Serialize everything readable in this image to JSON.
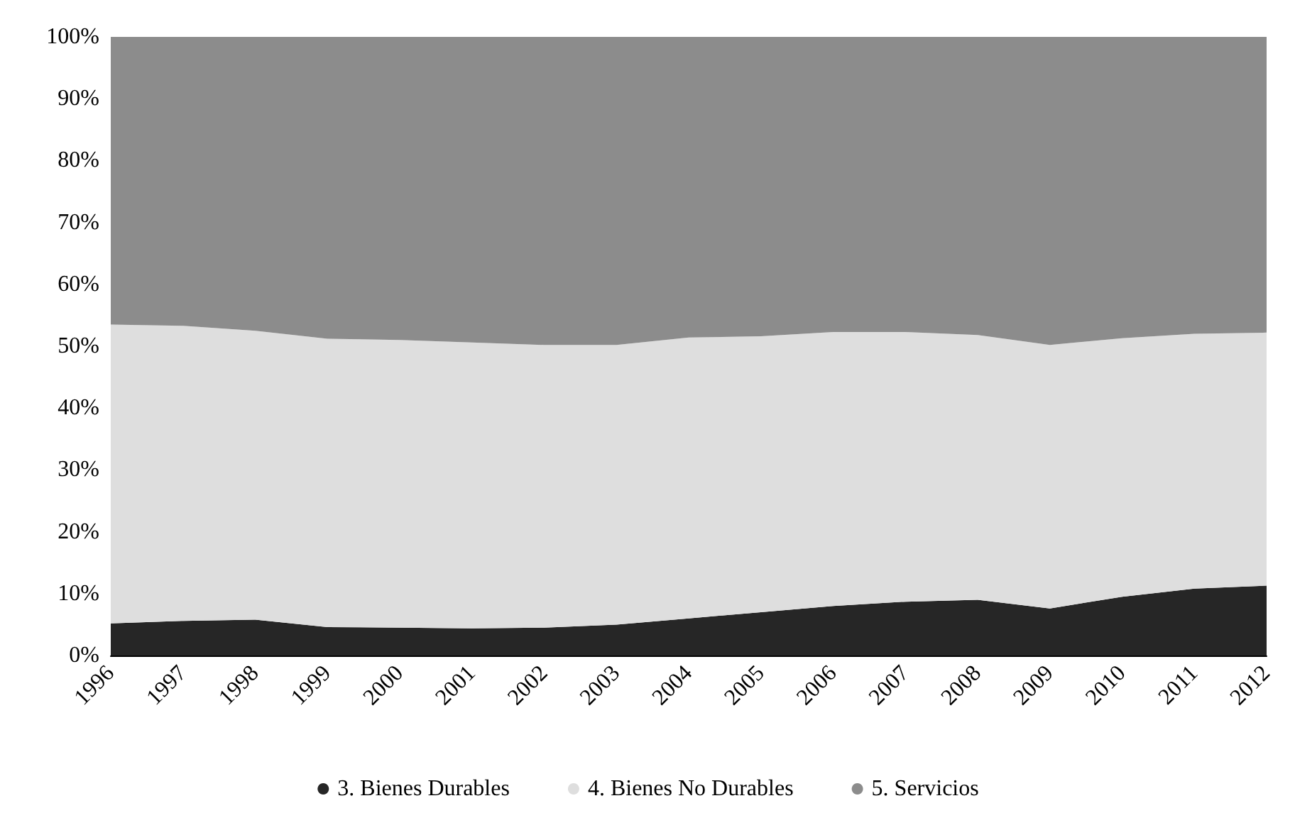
{
  "chart_data": {
    "type": "area",
    "stacked": true,
    "categories": [
      "1996",
      "1997",
      "1998",
      "1999",
      "2000",
      "2001",
      "2002",
      "2003",
      "2004",
      "2005",
      "2006",
      "2007",
      "2008",
      "2009",
      "2010",
      "2011",
      "2012"
    ],
    "series": [
      {
        "name": "3. Bienes Durables",
        "color": "#262626",
        "values": [
          5.2,
          5.6,
          5.8,
          4.6,
          4.5,
          4.4,
          4.5,
          5.0,
          6.0,
          7.0,
          8.0,
          8.7,
          9.0,
          7.6,
          9.5,
          10.8,
          11.3
        ]
      },
      {
        "name": "4. Bienes No Durables",
        "color": "#dedede",
        "values": [
          48.3,
          47.7,
          46.7,
          46.6,
          46.5,
          46.2,
          45.7,
          45.2,
          45.4,
          44.6,
          44.3,
          43.6,
          42.8,
          42.6,
          41.8,
          41.2,
          40.9
        ]
      },
      {
        "name": "5. Servicios",
        "color": "#8c8c8c",
        "values": [
          46.5,
          46.7,
          47.5,
          48.8,
          49.0,
          49.4,
          49.8,
          49.8,
          48.6,
          48.4,
          47.7,
          47.7,
          48.2,
          49.8,
          48.7,
          48.0,
          47.8
        ]
      }
    ],
    "ylim": [
      0,
      100
    ],
    "yticks": [
      {
        "value": 0,
        "label": "0%"
      },
      {
        "value": 10,
        "label": "10%"
      },
      {
        "value": 20,
        "label": "20%"
      },
      {
        "value": 30,
        "label": "30%"
      },
      {
        "value": 40,
        "label": "40%"
      },
      {
        "value": 50,
        "label": "50%"
      },
      {
        "value": 60,
        "label": "60%"
      },
      {
        "value": 70,
        "label": "70%"
      },
      {
        "value": 80,
        "label": "80%"
      },
      {
        "value": 90,
        "label": "90%"
      },
      {
        "value": 100,
        "label": "100%"
      }
    ],
    "grid": false,
    "legend": "bottom"
  }
}
